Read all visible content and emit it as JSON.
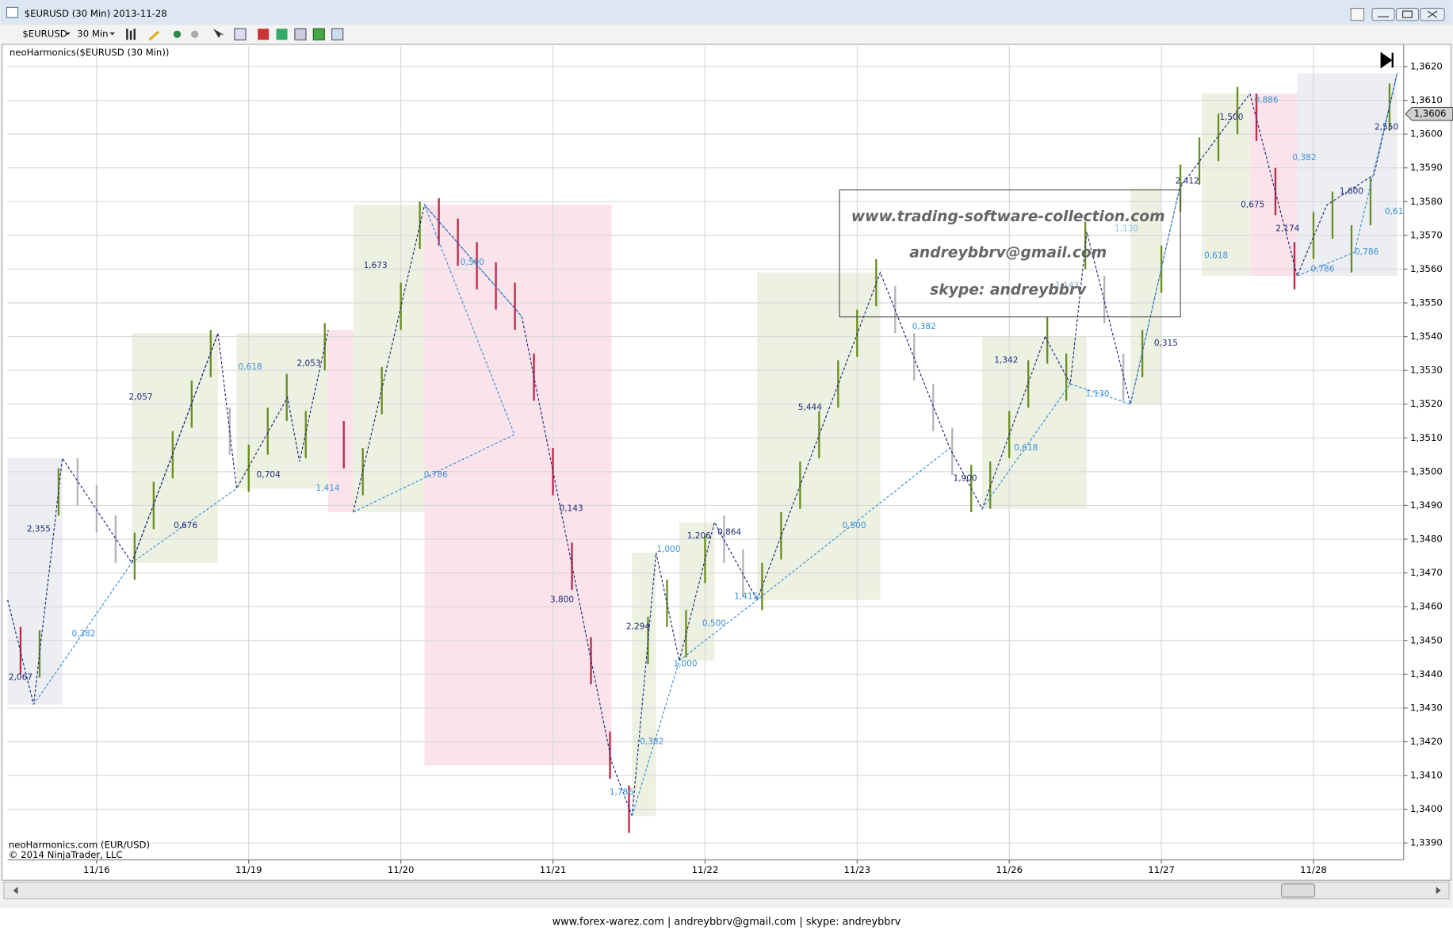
{
  "window": {
    "title": "$EURUSD (30 Min)  2013-11-28",
    "instrument": "$EURUSD",
    "interval": "30 Min",
    "footer": "www.forex-warez.com | andreybbrv@gmail.com | skype: andreybbrv"
  },
  "chart_data": {
    "type": "ohlc",
    "indicator_label": "neoHarmonics($EURUSD (30 Min))",
    "credits": [
      "neoHarmonics.com (EUR/USD)",
      "© 2014 NinjaTrader, LLC"
    ],
    "watermark": [
      "www.trading-software-collection.com",
      "andreybbrv@gmail.com",
      "skype: andreybbrv"
    ],
    "xlim": [
      0.415,
      9.593
    ],
    "ylim": [
      1.3385,
      1.3626
    ],
    "grid": true,
    "xticks": [
      {
        "value": 1,
        "label": "11/16"
      },
      {
        "value": 2,
        "label": "11/19"
      },
      {
        "value": 3,
        "label": "11/20"
      },
      {
        "value": 4,
        "label": "11/21"
      },
      {
        "value": 5,
        "label": "11/22"
      },
      {
        "value": 6,
        "label": "11/23"
      },
      {
        "value": 7,
        "label": "11/26"
      },
      {
        "value": 8,
        "label": "11/27"
      },
      {
        "value": 9,
        "label": "11/28"
      }
    ],
    "yticks": [
      {
        "value": 1.339,
        "label": "1,3390"
      },
      {
        "value": 1.34,
        "label": "1,3400"
      },
      {
        "value": 1.341,
        "label": "1,3410"
      },
      {
        "value": 1.342,
        "label": "1,3420"
      },
      {
        "value": 1.343,
        "label": "1,3430"
      },
      {
        "value": 1.344,
        "label": "1,3440"
      },
      {
        "value": 1.345,
        "label": "1,3450"
      },
      {
        "value": 1.346,
        "label": "1,3460"
      },
      {
        "value": 1.347,
        "label": "1,3470"
      },
      {
        "value": 1.348,
        "label": "1,3480"
      },
      {
        "value": 1.349,
        "label": "1,3490"
      },
      {
        "value": 1.35,
        "label": "1,3500"
      },
      {
        "value": 1.351,
        "label": "1,3510"
      },
      {
        "value": 1.352,
        "label": "1,3520"
      },
      {
        "value": 1.353,
        "label": "1,3530"
      },
      {
        "value": 1.354,
        "label": "1,3540"
      },
      {
        "value": 1.355,
        "label": "1,3550"
      },
      {
        "value": 1.356,
        "label": "1,3560"
      },
      {
        "value": 1.357,
        "label": "1,3570"
      },
      {
        "value": 1.358,
        "label": "1,3580"
      },
      {
        "value": 1.359,
        "label": "1,3590"
      },
      {
        "value": 1.36,
        "label": "1,3600"
      },
      {
        "value": 1.361,
        "label": "1,3610"
      },
      {
        "value": 1.362,
        "label": "1,3620"
      }
    ],
    "last_price": {
      "value": 1.3606,
      "label": "1,3606"
    },
    "zones": [
      {
        "x": [
          0.415,
          0.775
        ],
        "y": [
          1.3431,
          1.3504
        ],
        "color": "#eceef2"
      },
      {
        "x": [
          1.231,
          1.798
        ],
        "y": [
          1.3473,
          1.3541
        ],
        "color": "#edf1e2"
      },
      {
        "x": [
          1.92,
          2.523
        ],
        "y": [
          1.3495,
          1.3541
        ],
        "color": "#edf1e2"
      },
      {
        "x": [
          2.523,
          2.687
        ],
        "y": [
          1.3488,
          1.3542
        ],
        "color": "#fae3ea"
      },
      {
        "x": [
          2.687,
          3.156
        ],
        "y": [
          1.3488,
          1.3579
        ],
        "color": "#edf1e2"
      },
      {
        "x": [
          3.156,
          4.386
        ],
        "y": [
          1.3413,
          1.3579
        ],
        "color": "#fae3ea"
      },
      {
        "x": [
          4.52,
          4.678
        ],
        "y": [
          1.3398,
          1.3476
        ],
        "color": "#edf1e2"
      },
      {
        "x": [
          4.831,
          5.062
        ],
        "y": [
          1.3444,
          1.3485
        ],
        "color": "#edf1e2"
      },
      {
        "x": [
          5.342,
          6.152
        ],
        "y": [
          1.3462,
          1.3559
        ],
        "color": "#edf1e2"
      },
      {
        "x": [
          6.822,
          7.51
        ],
        "y": [
          1.3489,
          1.354
        ],
        "color": "#edf1e2"
      },
      {
        "x": [
          7.797,
          8.0
        ],
        "y": [
          1.352,
          1.3584
        ],
        "color": "#edf1e2"
      },
      {
        "x": [
          8.265,
          8.582
        ],
        "y": [
          1.3558,
          1.3612
        ],
        "color": "#edf1e2"
      },
      {
        "x": [
          8.582,
          8.893
        ],
        "y": [
          1.3558,
          1.3612
        ],
        "color": "#fae3ea"
      },
      {
        "x": [
          8.893,
          9.55
        ],
        "y": [
          1.3558,
          1.3618
        ],
        "color": "#eceef2"
      }
    ],
    "series": [
      {
        "color": "#6b8e23",
        "x": [
          0.625,
          0.75,
          1.25,
          1.375,
          1.5,
          1.625,
          1.75,
          2.0,
          2.125,
          2.25,
          2.375,
          2.5,
          2.75,
          2.875,
          3.0,
          3.125,
          4.625,
          4.75,
          4.875,
          5.0,
          5.375,
          5.5,
          5.625,
          5.75,
          5.875,
          6.0,
          6.125,
          6.75,
          6.875,
          7.0,
          7.125,
          7.25,
          7.375,
          7.5,
          7.875,
          8.0,
          8.125,
          8.25,
          8.375,
          8.5,
          9.0,
          9.125,
          9.25,
          9.375,
          9.5
        ],
        "high": [
          1.3453,
          1.3501,
          1.3482,
          1.3497,
          1.3512,
          1.3527,
          1.3542,
          1.3508,
          1.3519,
          1.3529,
          1.3518,
          1.3544,
          1.3507,
          1.3531,
          1.3556,
          1.358,
          1.3457,
          1.3468,
          1.3459,
          1.3481,
          1.3473,
          1.3488,
          1.3503,
          1.3518,
          1.3533,
          1.3548,
          1.3563,
          1.3502,
          1.3503,
          1.3518,
          1.3533,
          1.3546,
          1.3535,
          1.3574,
          1.3542,
          1.3567,
          1.3591,
          1.3599,
          1.3606,
          1.3614,
          1.3577,
          1.3583,
          1.3573,
          1.3587,
          1.3615
        ],
        "low": [
          1.3439,
          1.3487,
          1.3468,
          1.3483,
          1.3498,
          1.3513,
          1.3528,
          1.3494,
          1.3505,
          1.3515,
          1.3504,
          1.353,
          1.3493,
          1.3517,
          1.3542,
          1.3566,
          1.3443,
          1.3454,
          1.3445,
          1.3467,
          1.3459,
          1.3474,
          1.3489,
          1.3504,
          1.3519,
          1.3534,
          1.3549,
          1.3488,
          1.3489,
          1.3504,
          1.3519,
          1.3532,
          1.3521,
          1.356,
          1.3528,
          1.3553,
          1.3577,
          1.3585,
          1.3592,
          1.36,
          1.3563,
          1.3569,
          1.3559,
          1.3573,
          1.3601
        ]
      },
      {
        "color": "#c0284a",
        "x": [
          0.5,
          2.625,
          3.25,
          3.375,
          3.5,
          3.625,
          3.75,
          3.875,
          4.0,
          4.125,
          4.25,
          4.375,
          4.5,
          8.625,
          8.75,
          8.875
        ],
        "high": [
          1.3454,
          1.3515,
          1.3581,
          1.3575,
          1.3568,
          1.3562,
          1.3556,
          1.3535,
          1.3507,
          1.3479,
          1.3451,
          1.3423,
          1.3407,
          1.3612,
          1.359,
          1.3568
        ],
        "low": [
          1.344,
          1.3501,
          1.3567,
          1.3561,
          1.3554,
          1.3548,
          1.3542,
          1.3521,
          1.3493,
          1.3465,
          1.3437,
          1.3409,
          1.3393,
          1.3598,
          1.3576,
          1.3554
        ]
      },
      {
        "color": "#b4b4bc",
        "x": [
          0.875,
          1.0,
          1.125,
          1.875,
          5.125,
          5.25,
          6.25,
          6.375,
          6.5,
          6.625,
          7.625,
          7.75
        ],
        "high": [
          1.3504,
          1.3496,
          1.3487,
          1.3519,
          1.3487,
          1.3477,
          1.3555,
          1.3541,
          1.3526,
          1.3513,
          1.3558,
          1.3535
        ],
        "low": [
          1.349,
          1.3482,
          1.3473,
          1.3505,
          1.3473,
          1.3463,
          1.3541,
          1.3527,
          1.3512,
          1.3499,
          1.3544,
          1.3521
        ]
      }
    ],
    "patterns": [
      {
        "color": "#1f2a7a",
        "x": [
          0.415,
          0.586,
          0.775,
          1.231,
          1.798
        ],
        "y": [
          1.3462,
          1.3431,
          1.3504,
          1.3473,
          1.3541
        ]
      },
      {
        "color": "#1f2a7a",
        "x": [
          1.231,
          1.798,
          1.92,
          2.255,
          2.334,
          2.523
        ],
        "y": [
          1.3473,
          1.3541,
          1.3495,
          1.3522,
          1.3503,
          1.3542
        ]
      },
      {
        "color": "#1f2a7a",
        "x": [
          2.687,
          3.156,
          3.795,
          4.386,
          4.52
        ],
        "y": [
          1.3488,
          1.3579,
          1.3546,
          1.3414,
          1.3398
        ]
      },
      {
        "color": "#1f2a7a",
        "x": [
          4.52,
          4.678,
          4.831,
          5.062,
          5.342
        ],
        "y": [
          1.3398,
          1.3476,
          1.3444,
          1.3485,
          1.3462
        ]
      },
      {
        "color": "#1f2a7a",
        "x": [
          5.342,
          6.152,
          6.609,
          6.822,
          7.236
        ],
        "y": [
          1.3462,
          1.3559,
          1.3507,
          1.3489,
          1.354
        ]
      },
      {
        "color": "#1f2a7a",
        "x": [
          7.236,
          7.401,
          7.51,
          7.797,
          8.12,
          8.582
        ],
        "y": [
          1.354,
          1.3526,
          1.3571,
          1.352,
          1.3584,
          1.3612
        ]
      },
      {
        "color": "#1f2a7a",
        "x": [
          8.582,
          8.893,
          9.088,
          9.398,
          9.55
        ],
        "y": [
          1.3612,
          1.3558,
          1.3579,
          1.3588,
          1.3618
        ]
      },
      {
        "color": "#3b8fd8",
        "x": [
          0.586,
          1.231,
          1.92
        ],
        "y": [
          1.3431,
          1.3473,
          1.3495
        ]
      },
      {
        "color": "#3b8fd8",
        "x": [
          2.687,
          3.747,
          3.156,
          3.795
        ],
        "y": [
          1.3488,
          1.3511,
          1.3579,
          1.3546
        ]
      },
      {
        "color": "#3b8fd8",
        "x": [
          4.52,
          4.831,
          5.342,
          6.609
        ],
        "y": [
          1.3398,
          1.3444,
          1.3462,
          1.3507
        ]
      },
      {
        "color": "#3b8fd8",
        "x": [
          6.822,
          7.401,
          7.797,
          8.12
        ],
        "y": [
          1.3489,
          1.3526,
          1.352,
          1.3584
        ]
      },
      {
        "color": "#3b8fd8",
        "x": [
          8.893,
          9.27,
          9.55
        ],
        "y": [
          1.3558,
          1.3565,
          1.3618
        ]
      }
    ],
    "annotations": [
      {
        "text": "2,067",
        "x": 0.5,
        "y": 1.3439,
        "color": "#1f2a7a"
      },
      {
        "text": "2,355",
        "x": 0.62,
        "y": 1.3483,
        "color": "#1f2a7a"
      },
      {
        "text": "0,382",
        "x": 0.915,
        "y": 1.3452,
        "color": "#3b8fd8"
      },
      {
        "text": "2,057",
        "x": 1.29,
        "y": 1.3522,
        "color": "#1f2a7a"
      },
      {
        "text": "0,676",
        "x": 1.585,
        "y": 1.3484,
        "color": "#1f2a7a"
      },
      {
        "text": "0,618",
        "x": 2.01,
        "y": 1.3531,
        "color": "#3b8fd8"
      },
      {
        "text": "0,704",
        "x": 2.13,
        "y": 1.3499,
        "color": "#1f2a7a"
      },
      {
        "text": "2,053",
        "x": 2.395,
        "y": 1.3532,
        "color": "#1f2a7a"
      },
      {
        "text": "1,414",
        "x": 2.52,
        "y": 1.3495,
        "color": "#3b8fd8"
      },
      {
        "text": "1,673",
        "x": 2.833,
        "y": 1.3561,
        "color": "#1f2a7a"
      },
      {
        "text": "0,786",
        "x": 3.23,
        "y": 1.3499,
        "color": "#3b8fd8"
      },
      {
        "text": "0,500",
        "x": 3.47,
        "y": 1.3562,
        "color": "#3b8fd8"
      },
      {
        "text": "0,143",
        "x": 4.12,
        "y": 1.3489,
        "color": "#1f2a7a"
      },
      {
        "text": "3,800",
        "x": 4.06,
        "y": 1.3462,
        "color": "#1f2a7a"
      },
      {
        "text": "2,294",
        "x": 4.56,
        "y": 1.3454,
        "color": "#1f2a7a"
      },
      {
        "text": "1,786",
        "x": 4.45,
        "y": 1.3405,
        "color": "#3b8fd8"
      },
      {
        "text": "0,382",
        "x": 4.65,
        "y": 1.342,
        "color": "#3b8fd8"
      },
      {
        "text": "1,000",
        "x": 4.76,
        "y": 1.3477,
        "color": "#3b8fd8"
      },
      {
        "text": "1,000",
        "x": 4.87,
        "y": 1.3443,
        "color": "#3b8fd8"
      },
      {
        "text": "0,500",
        "x": 5.06,
        "y": 1.3455,
        "color": "#3b8fd8"
      },
      {
        "text": "1,206",
        "x": 4.96,
        "y": 1.3481,
        "color": "#1f2a7a"
      },
      {
        "text": "0,864",
        "x": 5.16,
        "y": 1.3482,
        "color": "#1f2a7a"
      },
      {
        "text": "1,415",
        "x": 5.27,
        "y": 1.3463,
        "color": "#3b8fd8"
      },
      {
        "text": "0,500",
        "x": 5.98,
        "y": 1.3484,
        "color": "#3b8fd8"
      },
      {
        "text": "5,444",
        "x": 5.69,
        "y": 1.3519,
        "color": "#1f2a7a"
      },
      {
        "text": "0,382",
        "x": 6.44,
        "y": 1.3543,
        "color": "#3b8fd8"
      },
      {
        "text": "1,342",
        "x": 6.98,
        "y": 1.3533,
        "color": "#1f2a7a"
      },
      {
        "text": "1,900",
        "x": 6.71,
        "y": 1.3498,
        "color": "#1f2a7a"
      },
      {
        "text": "0,618",
        "x": 7.11,
        "y": 1.3507,
        "color": "#3b8fd8"
      },
      {
        "text": "1,130",
        "x": 7.58,
        "y": 1.3523,
        "color": "#3b8fd8"
      },
      {
        "text": "1,143",
        "x": 7.38,
        "y": 1.3555,
        "color": "#8fa7c8"
      },
      {
        "text": "1,130",
        "x": 7.77,
        "y": 1.3572,
        "color": "#8fbde8"
      },
      {
        "text": "0,315",
        "x": 8.03,
        "y": 1.3538,
        "color": "#1f2a7a"
      },
      {
        "text": "2,412",
        "x": 8.17,
        "y": 1.3586,
        "color": "#1f2a7a"
      },
      {
        "text": "0,618",
        "x": 8.36,
        "y": 1.3564,
        "color": "#3b8fd8"
      },
      {
        "text": "1,500",
        "x": 8.46,
        "y": 1.3605,
        "color": "#1f2a7a"
      },
      {
        "text": "0,886",
        "x": 8.69,
        "y": 1.361,
        "color": "#3b8fd8"
      },
      {
        "text": "0,382",
        "x": 8.94,
        "y": 1.3593,
        "color": "#3b8fd8"
      },
      {
        "text": "0,675",
        "x": 8.6,
        "y": 1.3579,
        "color": "#1f2a7a"
      },
      {
        "text": "2,174",
        "x": 8.83,
        "y": 1.3572,
        "color": "#1f2a7a"
      },
      {
        "text": "1,600",
        "x": 9.25,
        "y": 1.3583,
        "color": "#1f2a7a"
      },
      {
        "text": "0,786",
        "x": 9.06,
        "y": 1.356,
        "color": "#3b8fd8"
      },
      {
        "text": "0,786",
        "x": 9.35,
        "y": 1.3565,
        "color": "#3b8fd8"
      },
      {
        "text": "2,550",
        "x": 9.48,
        "y": 1.3602,
        "color": "#1f2a7a"
      },
      {
        "text": "0,61",
        "x": 9.53,
        "y": 1.3577,
        "color": "#3b8fd8"
      }
    ]
  }
}
